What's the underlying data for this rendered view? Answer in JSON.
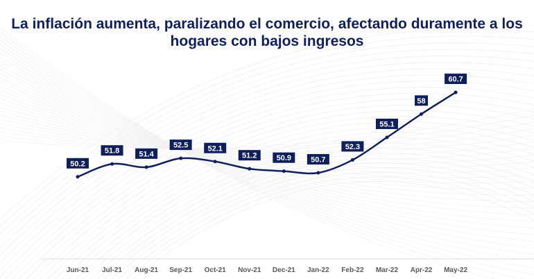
{
  "chart_data": {
    "type": "line",
    "title": "La inflación aumenta, paralizando el comercio, afectando duramente a los hogares con bajos ingresos",
    "categories": [
      "Jun-21",
      "Jul-21",
      "Aug-21",
      "Sep-21",
      "Oct-21",
      "Nov-21",
      "Dec-21",
      "Jan-22",
      "Feb-22",
      "Mar-22",
      "Apr-22",
      "May-22"
    ],
    "values": [
      50.2,
      51.8,
      51.4,
      52.5,
      52.1,
      51.2,
      50.9,
      50.7,
      52.3,
      55.1,
      58,
      60.7
    ],
    "data_labels": [
      "50.2",
      "51.8",
      "51.4",
      "52.5",
      "52.1",
      "51.2",
      "50.9",
      "50.7",
      "52.3",
      "55.1",
      "58",
      "60.7"
    ],
    "xlabel": "",
    "ylabel": "",
    "ylim": [
      40,
      62
    ],
    "grid": false,
    "line_style": "smooth",
    "colors": {
      "line": "#0f1f5c",
      "label_bg": "#0f1f5c",
      "label_text": "#ffffff",
      "title": "#0f1f5c",
      "axis": "#d9d9d9",
      "tick_text": "#595959"
    }
  }
}
